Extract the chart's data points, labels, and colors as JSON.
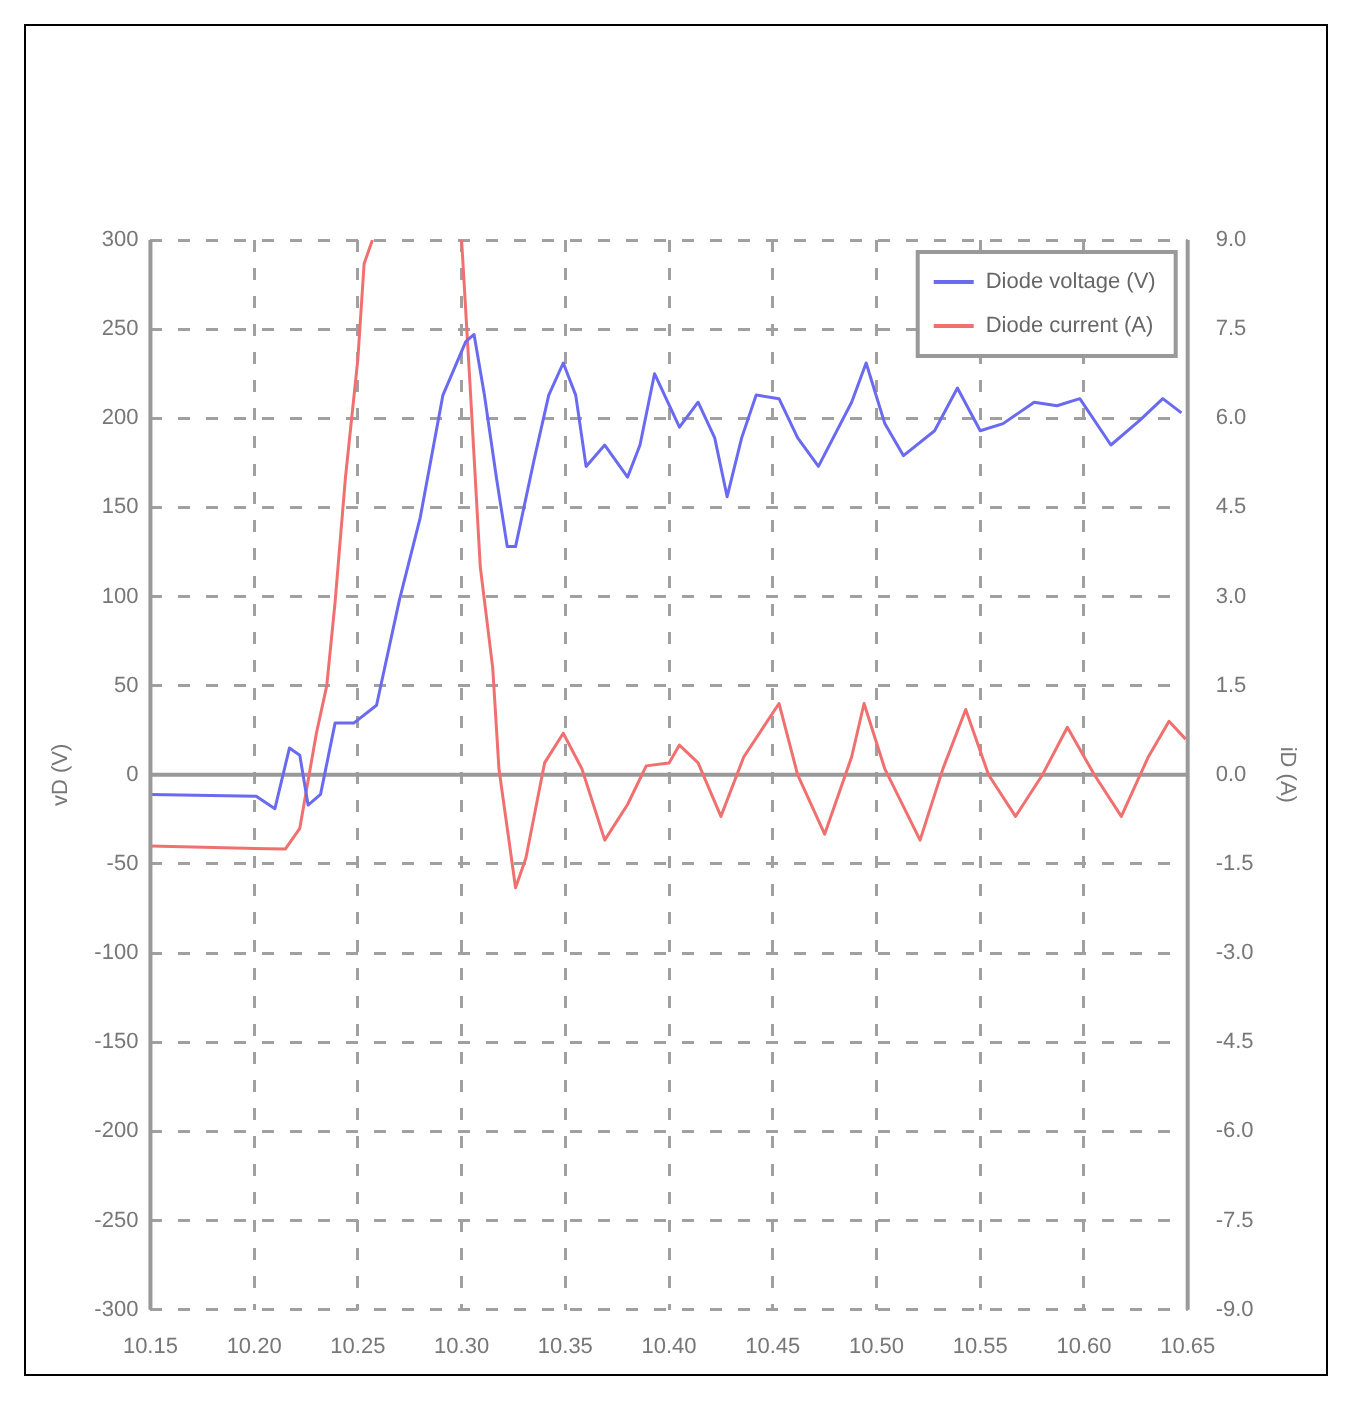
{
  "chart_data": {
    "type": "line",
    "ylabel": "vD (V)",
    "y2label": "iD (A)",
    "legend": "top right",
    "grid": true,
    "marker": "none",
    "line_style": "solid",
    "xlim": [
      10.15,
      10.65
    ],
    "xticks": [
      {
        "value": 10.15,
        "label": "10.15"
      },
      {
        "value": 10.2,
        "label": "10.20"
      },
      {
        "value": 10.25,
        "label": "10.25"
      },
      {
        "value": 10.3,
        "label": "10.30"
      },
      {
        "value": 10.35,
        "label": "10.35"
      },
      {
        "value": 10.4,
        "label": "10.40"
      },
      {
        "value": 10.45,
        "label": "10.45"
      },
      {
        "value": 10.5,
        "label": "10.50"
      },
      {
        "value": 10.55,
        "label": "10.55"
      },
      {
        "value": 10.6,
        "label": "10.60"
      },
      {
        "value": 10.65,
        "label": "10.65"
      }
    ],
    "ylim": [
      -300,
      300
    ],
    "yticks": [
      -300,
      -250,
      -200,
      -150,
      -100,
      -50,
      0,
      50,
      100,
      150,
      200,
      250,
      300
    ],
    "y2lim": [
      -9,
      9
    ],
    "y2ticks": [
      {
        "value": -9,
        "label": "-9.0"
      },
      {
        "value": -7.5,
        "label": "-7.5"
      },
      {
        "value": -6,
        "label": "-6.0"
      },
      {
        "value": -4.5,
        "label": "-4.5"
      },
      {
        "value": -3,
        "label": "-3.0"
      },
      {
        "value": -1.5,
        "label": "-1.5"
      },
      {
        "value": 0,
        "label": "0.0"
      },
      {
        "value": 1.5,
        "label": "1.5"
      },
      {
        "value": 3,
        "label": "3.0"
      },
      {
        "value": 4.5,
        "label": "4.5"
      },
      {
        "value": 6,
        "label": "6.0"
      },
      {
        "value": 7.5,
        "label": "7.5"
      },
      {
        "value": 9,
        "label": "9.0"
      }
    ],
    "ref_lines": [
      {
        "axis": "y",
        "value": 0,
        "color": "#999999",
        "line_style": "solid"
      }
    ],
    "series": [
      {
        "name": "Diode voltage (V)",
        "color": "#6a6af0",
        "x": [
          10.15,
          10.201,
          10.21,
          10.217,
          10.222,
          10.226,
          10.232,
          10.239,
          10.248,
          10.259,
          10.27,
          10.28,
          10.291,
          10.302,
          10.306,
          10.311,
          10.317,
          10.322,
          10.326,
          10.335,
          10.342,
          10.349,
          10.355,
          10.36,
          10.369,
          10.38,
          10.386,
          10.393,
          10.405,
          10.414,
          10.422,
          10.428,
          10.435,
          10.442,
          10.453,
          10.462,
          10.472,
          10.488,
          10.495,
          10.504,
          10.513,
          10.528,
          10.539,
          10.55,
          10.561,
          10.576,
          10.587,
          10.598,
          10.613,
          10.627,
          10.638,
          10.647
        ],
        "values": [
          -11,
          -12,
          -19,
          15,
          11,
          -17,
          -11,
          29,
          29,
          39,
          98,
          144,
          213,
          243,
          247,
          213,
          165,
          128,
          128,
          177,
          213,
          231,
          213,
          173,
          185,
          167,
          185,
          225,
          195,
          209,
          189,
          156,
          189,
          213,
          211,
          189,
          173,
          209,
          231,
          197,
          179,
          193,
          217,
          193,
          197,
          209,
          207,
          211,
          185,
          199,
          211,
          203
        ]
      },
      {
        "name": "Diode current (A)",
        "color": "#f07070",
        "axis": "y2",
        "x": [
          10.15,
          10.215,
          10.222,
          10.23,
          10.235,
          10.239,
          10.244,
          10.25,
          10.253,
          10.257,
          10.28,
          10.3,
          10.304,
          10.309,
          10.315,
          10.318,
          10.326,
          10.331,
          10.34,
          10.349,
          10.358,
          10.369,
          10.38,
          10.389,
          10.4,
          10.405,
          10.414,
          10.425,
          10.436,
          10.453,
          10.462,
          10.475,
          10.488,
          10.494,
          10.504,
          10.521,
          10.532,
          10.543,
          10.554,
          10.567,
          10.58,
          10.592,
          10.605,
          10.618,
          10.631,
          10.641,
          10.649
        ],
        "values": [
          -1.2,
          -1.25,
          -0.9,
          0.7,
          1.5,
          2.9,
          5.0,
          7.0,
          8.6,
          9.0,
          null,
          9.0,
          6.6,
          3.5,
          1.8,
          0.1,
          -1.9,
          -1.4,
          0.2,
          0.7,
          0.1,
          -1.1,
          -0.5,
          0.15,
          0.2,
          0.5,
          0.2,
          -0.7,
          0.3,
          1.2,
          0,
          -1.0,
          0.3,
          1.2,
          0.1,
          -1.1,
          0.1,
          1.1,
          0,
          -0.7,
          0,
          0.8,
          0,
          -0.7,
          0.3,
          0.9,
          0.6
        ]
      }
    ]
  }
}
